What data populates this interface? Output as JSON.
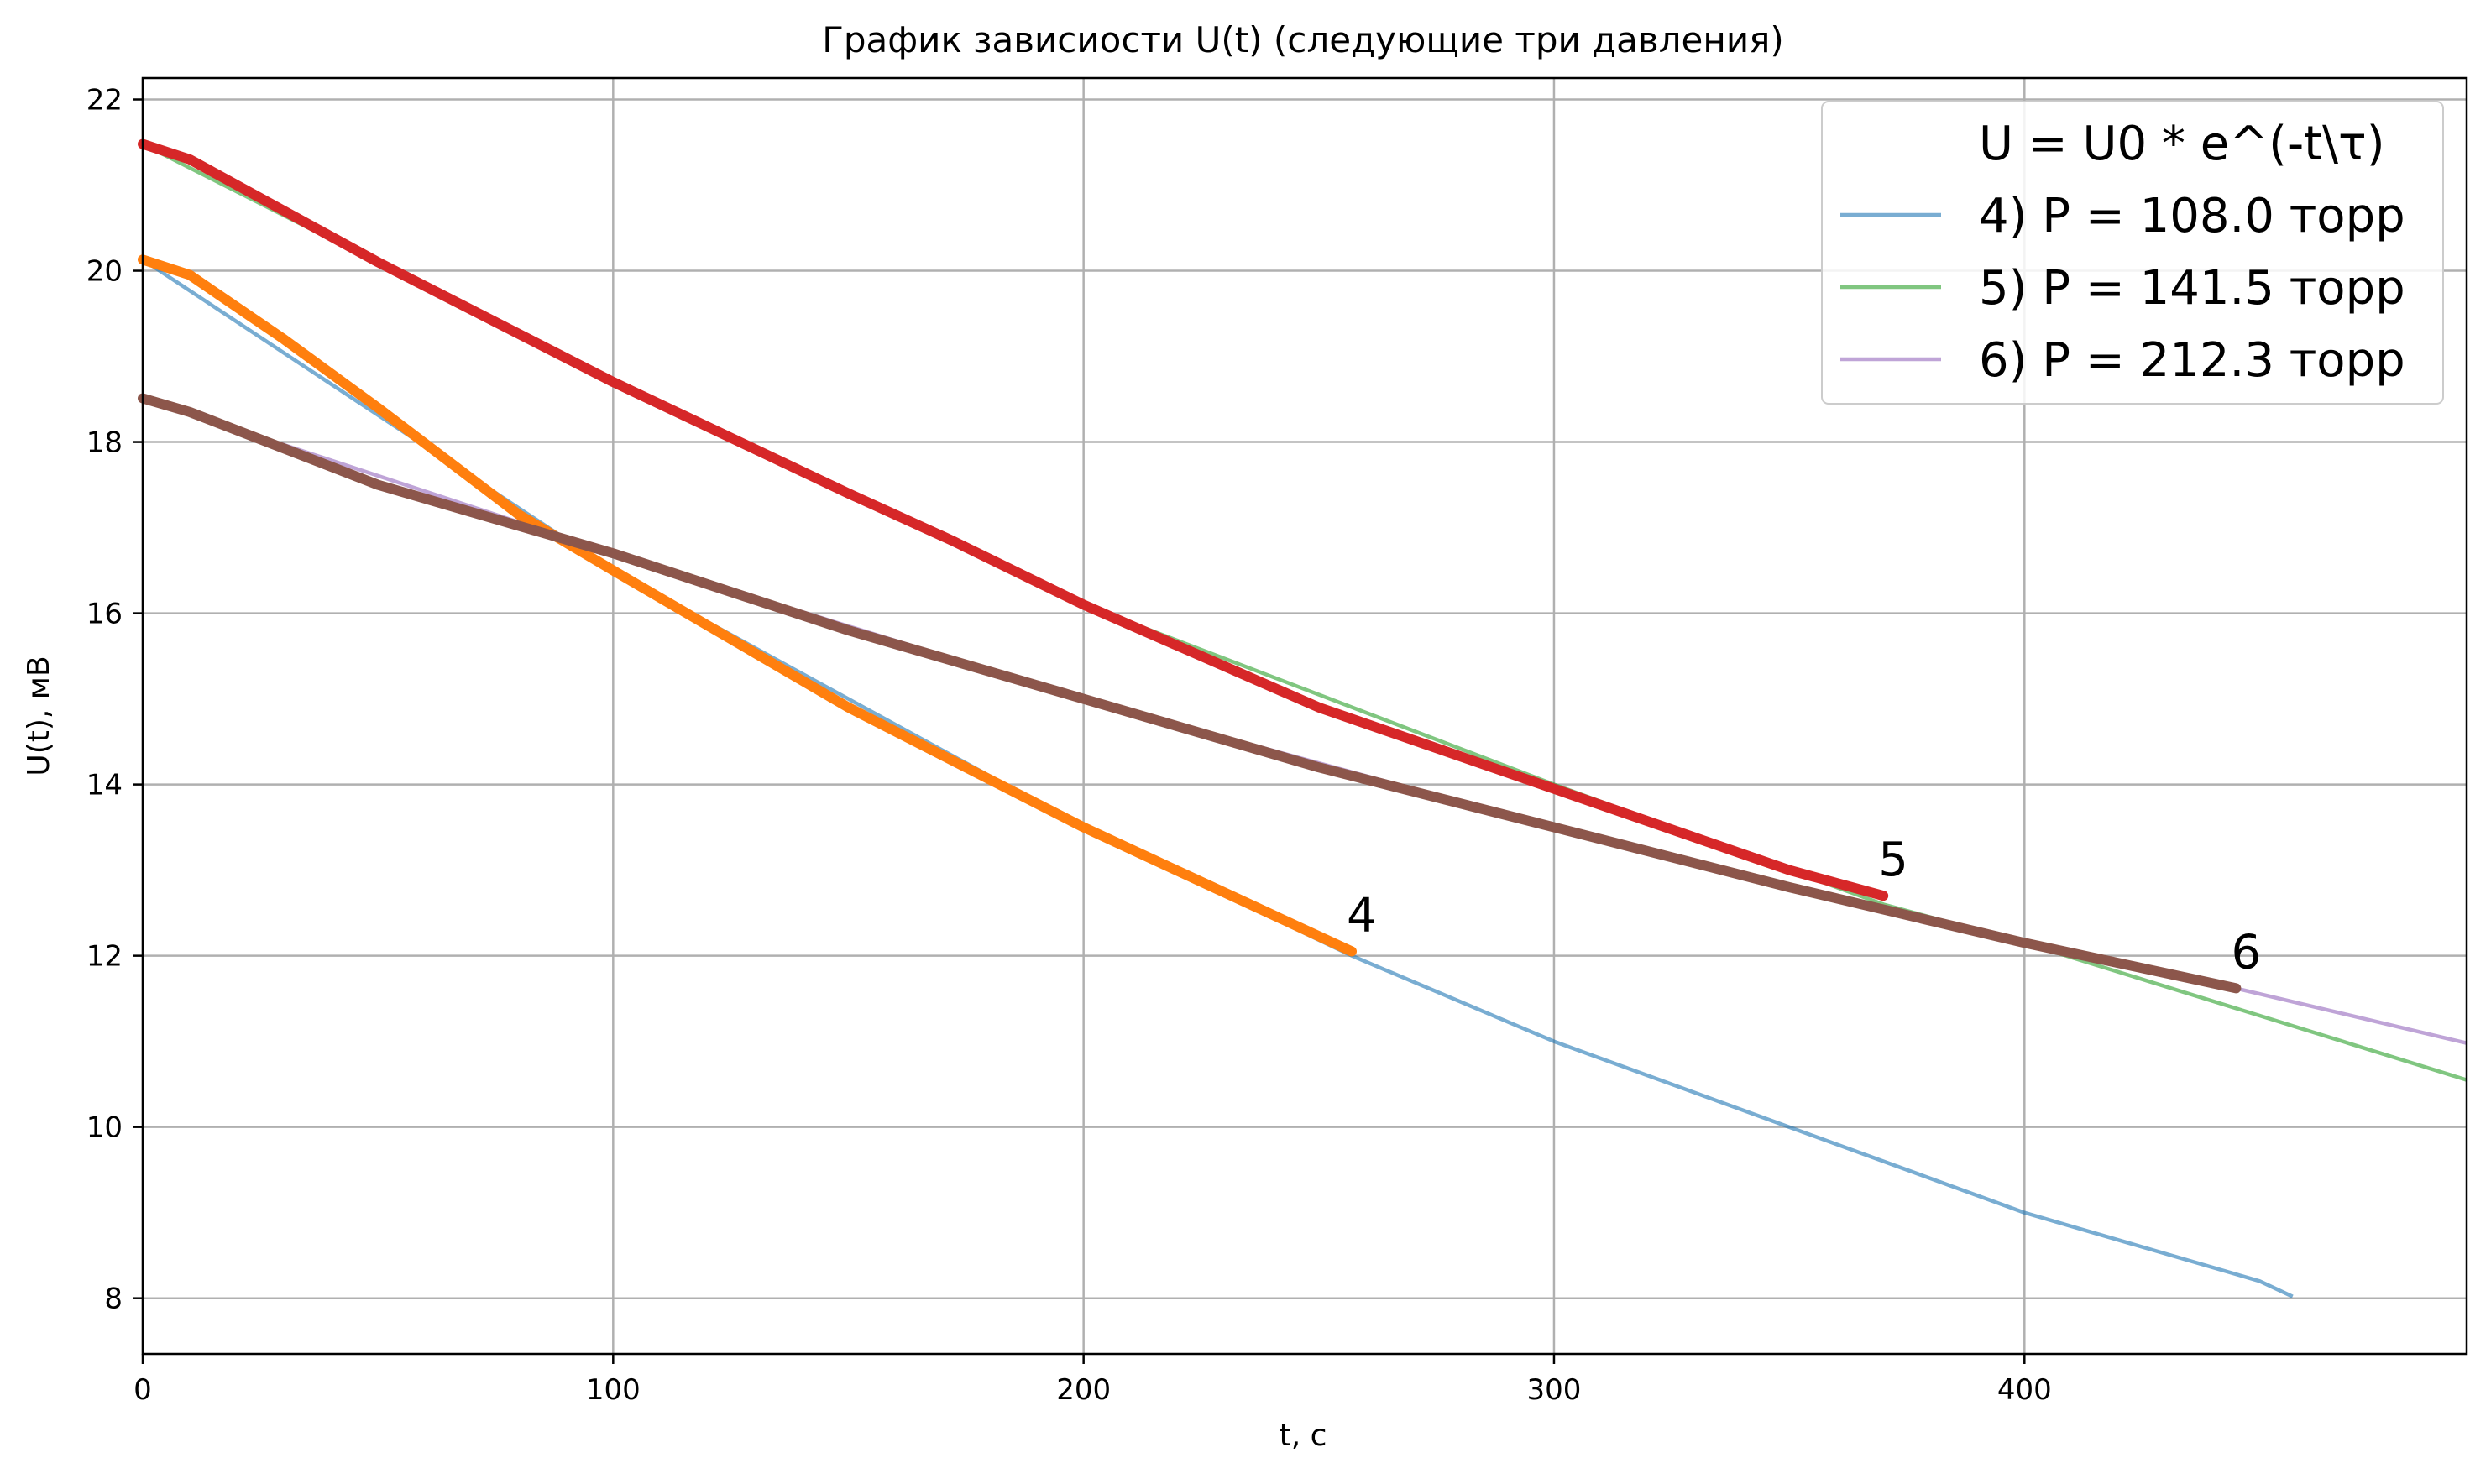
{
  "chart_data": {
    "type": "line",
    "title": "График зависиости U(t) (следующие три давления)",
    "xlabel": "t, с",
    "ylabel": "U(t), мВ",
    "xlim": [
      0,
      494
    ],
    "ylim": [
      7.35,
      22.25
    ],
    "x_ticks": [
      0,
      100,
      200,
      300,
      400
    ],
    "y_ticks": [
      8,
      10,
      12,
      14,
      16,
      18,
      20,
      22
    ],
    "grid": true,
    "legend": {
      "placement": "top-right",
      "header": "U = U0 * e^(-t\\τ)",
      "entries": [
        "4) P = 108.0 торр",
        "5) P = 141.5 торр",
        "6) P = 212.3 торр"
      ]
    },
    "series": [
      {
        "name": "4) P = 108.0 торр",
        "kind": "fit",
        "color": "#1f77b4",
        "x": [
          0,
          100,
          200,
          257,
          300,
          350,
          400,
          450,
          457
        ],
        "y": [
          20.13,
          16.5,
          13.5,
          12.0,
          11.0,
          10.0,
          9.0,
          8.2,
          8.02
        ]
      },
      {
        "name": "5) P = 141.5 торр",
        "kind": "fit",
        "color": "#2ca02c",
        "x": [
          0,
          100,
          200,
          300,
          370,
          400,
          450,
          494
        ],
        "y": [
          21.48,
          18.7,
          16.1,
          14.0,
          12.6,
          12.15,
          11.3,
          10.55
        ]
      },
      {
        "name": "6) P = 212.3 торр",
        "kind": "fit",
        "color": "#9467bd",
        "x": [
          0,
          100,
          200,
          300,
          400,
          445,
          494
        ],
        "y": [
          18.51,
          16.7,
          15.0,
          13.5,
          12.15,
          11.62,
          10.98
        ]
      },
      {
        "kind": "measured",
        "curve_label": "4",
        "color": "#ff7f0e",
        "x": [
          0,
          10,
          30,
          50,
          80,
          100,
          150,
          200,
          257
        ],
        "y": [
          20.13,
          19.95,
          19.2,
          18.4,
          17.15,
          16.5,
          14.9,
          13.5,
          12.05
        ]
      },
      {
        "kind": "measured",
        "curve_label": "5",
        "color": "#d62728",
        "x": [
          0,
          10,
          30,
          50,
          100,
          150,
          172,
          200,
          250,
          300,
          350,
          370
        ],
        "y": [
          21.48,
          21.3,
          20.7,
          20.1,
          18.7,
          17.4,
          16.85,
          16.1,
          14.9,
          13.95,
          13.0,
          12.7
        ]
      },
      {
        "kind": "measured",
        "curve_label": "6",
        "color": "#8c564b",
        "x": [
          0,
          10,
          50,
          100,
          150,
          200,
          250,
          300,
          350,
          400,
          445
        ],
        "y": [
          18.51,
          18.35,
          17.5,
          16.7,
          15.8,
          15.0,
          14.2,
          13.5,
          12.8,
          12.15,
          11.62
        ]
      }
    ]
  }
}
